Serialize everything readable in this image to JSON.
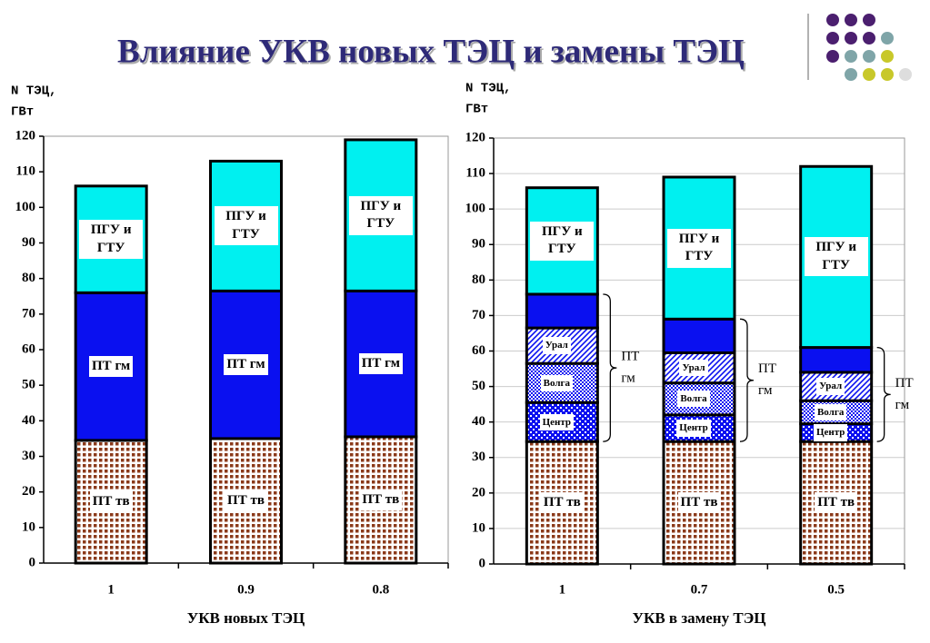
{
  "title": "Влияние УКВ новых ТЭЦ и замены ТЭЦ",
  "chart_data": [
    {
      "type": "bar",
      "stacked": true,
      "grid": false,
      "categories": [
        "1",
        "0.9",
        "0.8"
      ],
      "series": [
        {
          "name": "ПТ тв",
          "color": "#8b3a1a",
          "pattern": "dots",
          "values": [
            34.5,
            35,
            35.5
          ]
        },
        {
          "name": "ПТ гм",
          "color": "#0a10f0",
          "pattern": "solid",
          "values": [
            41.5,
            41.5,
            41
          ]
        },
        {
          "name": "ПГУ и ГТУ",
          "color": "#00f0f0",
          "pattern": "solid",
          "values": [
            30,
            36.5,
            42.5
          ]
        }
      ],
      "ylim": [
        0,
        120
      ],
      "yticks": [
        0,
        10,
        20,
        30,
        40,
        50,
        60,
        70,
        80,
        90,
        100,
        110,
        120
      ],
      "y_label": [
        "N ТЭЦ,",
        "ГВт"
      ],
      "x_label": "УКВ новых ТЭЦ"
    },
    {
      "type": "bar",
      "stacked": true,
      "grid": true,
      "categories": [
        "1",
        "0.7",
        "0.5"
      ],
      "series": [
        {
          "name": "ПТ тв",
          "color": "#8b3a1a",
          "pattern": "dots",
          "values": [
            34.5,
            34.5,
            34.5
          ]
        },
        {
          "name": "Центр",
          "color": "#0a10f0",
          "pattern": "fine-dots",
          "bracket": true,
          "values": [
            11,
            7.5,
            5
          ]
        },
        {
          "name": "Волга",
          "color": "#0a10f0",
          "pattern": "checker",
          "bracket": true,
          "values": [
            11,
            9,
            6.5
          ]
        },
        {
          "name": "Урал",
          "color": "#0a10f0",
          "pattern": "hatch",
          "bracket": true,
          "values": [
            10,
            8.5,
            8
          ]
        },
        {
          "color": "#0a10f0",
          "pattern": "solid",
          "bracket": true,
          "values": [
            9.5,
            9.5,
            7
          ]
        },
        {
          "name": "ПГУ и ГТУ",
          "color": "#00f0f0",
          "pattern": "solid",
          "values": [
            30,
            40,
            51
          ]
        }
      ],
      "ylim": [
        0,
        120
      ],
      "yticks": [
        0,
        10,
        20,
        30,
        40,
        50,
        60,
        70,
        80,
        90,
        100,
        110,
        120
      ],
      "y_label": [
        "N ТЭЦ,",
        "ГВт"
      ],
      "x_label": "УКВ в замену ТЭЦ",
      "bracket_label": [
        "ПТ",
        "гм"
      ]
    }
  ]
}
